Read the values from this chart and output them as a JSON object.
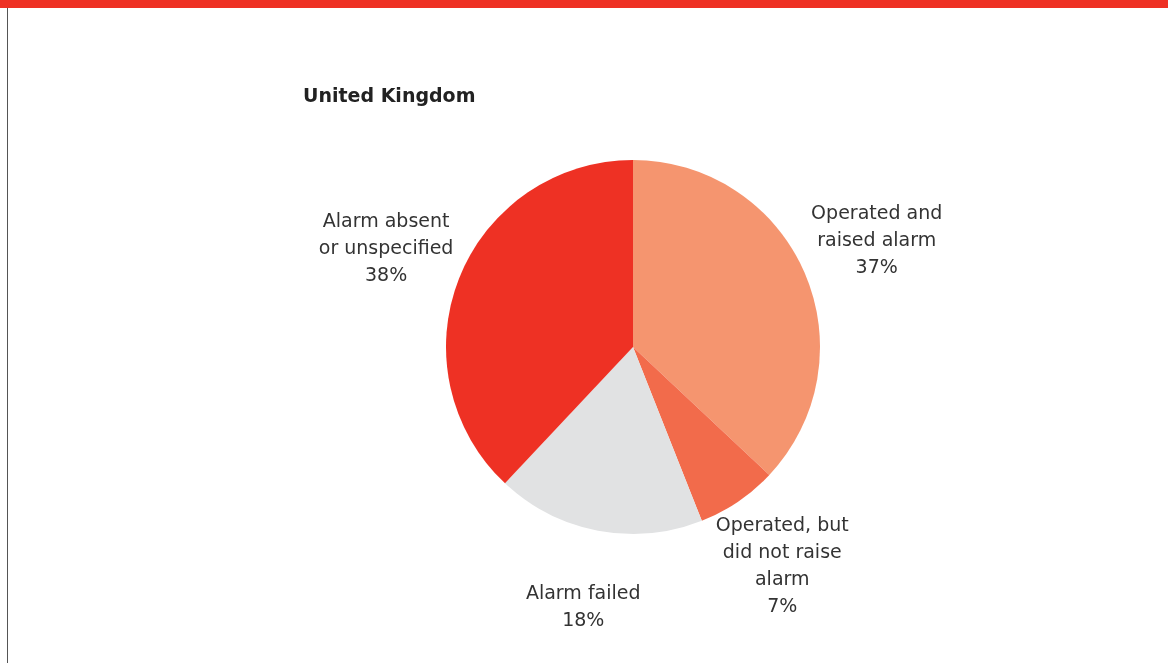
{
  "chart_data": {
    "type": "pie",
    "title": "United Kingdom",
    "categories": [
      "Operated and raised alarm",
      "Operated, but did not raise alarm",
      "Alarm failed",
      "Alarm absent or unspecified"
    ],
    "values": [
      37,
      7,
      18,
      38
    ],
    "value_labels": [
      "37%",
      "7%",
      "18%",
      "38%"
    ],
    "colors": [
      "#f5956f",
      "#f26b4b",
      "#e1e2e3",
      "#ee3124"
    ],
    "legend": false
  }
}
